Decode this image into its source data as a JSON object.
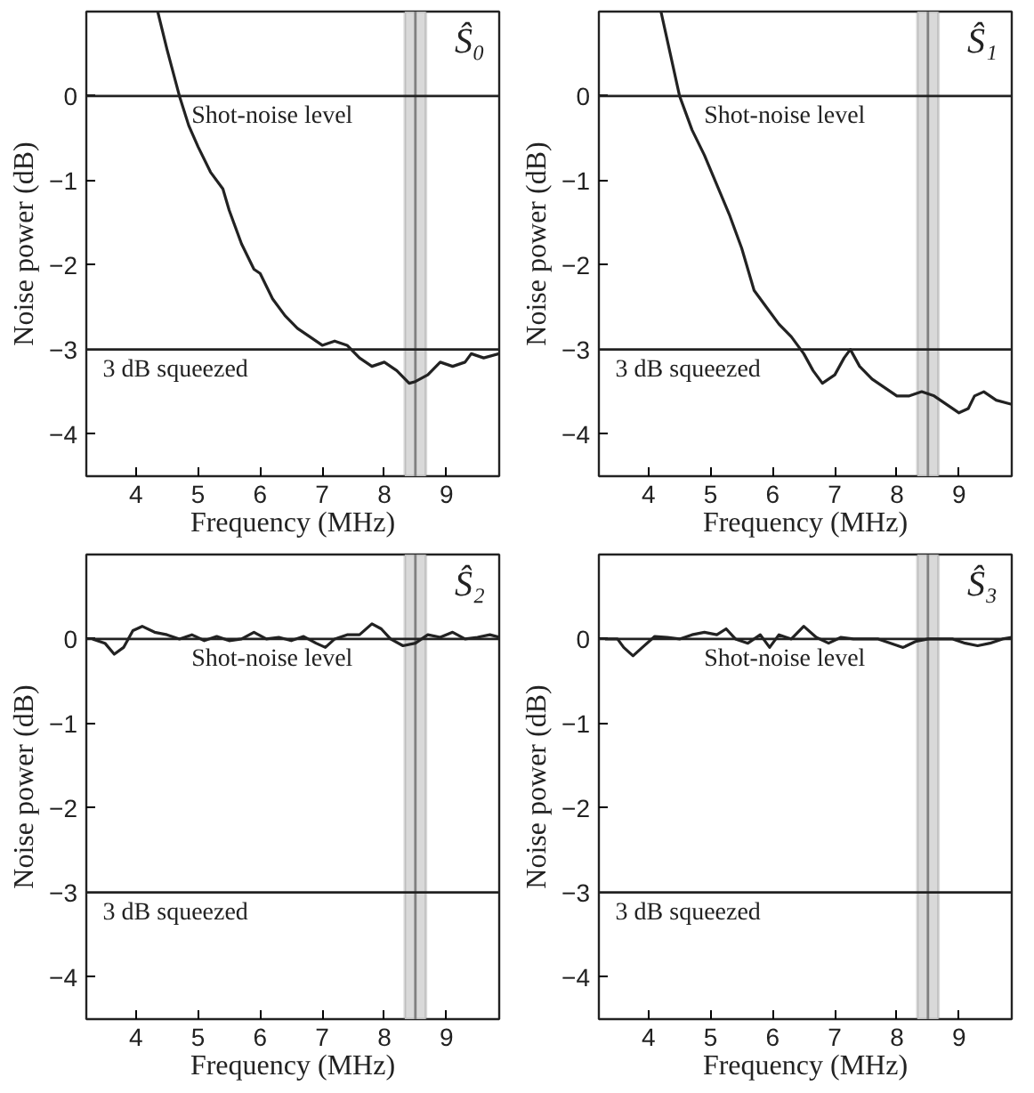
{
  "chart_data": [
    {
      "type": "line",
      "title": "Ŝ₀",
      "xlabel": "Frequency (MHz)",
      "ylabel": "Noise power (dB)",
      "xlim": [
        3.2,
        9.85
      ],
      "ylim": [
        -4.5,
        1.0
      ],
      "xticks": [
        4,
        5,
        6,
        7,
        8,
        9
      ],
      "yticks": [
        -4,
        -3,
        -2,
        -1,
        0
      ],
      "grid": false,
      "series": [
        {
          "color": "#222222",
          "x": [
            4.35,
            4.5,
            4.7,
            4.85,
            5.0,
            5.2,
            5.4,
            5.5,
            5.7,
            5.9,
            6.0,
            6.2,
            6.4,
            6.6,
            6.8,
            7.0,
            7.2,
            7.4,
            7.6,
            7.8,
            8.0,
            8.2,
            8.4,
            8.5,
            8.7,
            8.9,
            9.1,
            9.3,
            9.4,
            9.6,
            9.85
          ],
          "values": [
            1.0,
            0.55,
            0.0,
            -0.35,
            -0.6,
            -0.9,
            -1.1,
            -1.35,
            -1.75,
            -2.05,
            -2.1,
            -2.4,
            -2.6,
            -2.75,
            -2.85,
            -2.95,
            -2.9,
            -2.95,
            -3.1,
            -3.2,
            -3.15,
            -3.25,
            -3.4,
            -3.38,
            -3.3,
            -3.15,
            -3.2,
            -3.15,
            -3.05,
            -3.1,
            -3.05
          ]
        }
      ],
      "ref_lines": [
        {
          "axis": "y",
          "value": 0,
          "label": "Shot-noise level",
          "color": "#222222"
        },
        {
          "axis": "y",
          "value": -3,
          "label": "3 dB squeezed",
          "color": "#222222"
        },
        {
          "axis": "x",
          "value": 8.5,
          "color": "#808080"
        }
      ],
      "bands": [
        {
          "axis": "x",
          "from": 8.33,
          "to": 8.67,
          "color": "#d9d9d9"
        }
      ]
    },
    {
      "type": "line",
      "title": "Ŝ₁",
      "xlabel": "Frequency (MHz)",
      "ylabel": "Noise power (dB)",
      "xlim": [
        3.2,
        9.85
      ],
      "ylim": [
        -4.5,
        1.0
      ],
      "xticks": [
        4,
        5,
        6,
        7,
        8,
        9
      ],
      "yticks": [
        -4,
        -3,
        -2,
        -1,
        0
      ],
      "grid": false,
      "series": [
        {
          "color": "#222222",
          "x": [
            4.2,
            4.35,
            4.5,
            4.7,
            4.9,
            5.1,
            5.3,
            5.5,
            5.7,
            5.9,
            6.1,
            6.3,
            6.5,
            6.65,
            6.8,
            7.0,
            7.15,
            7.25,
            7.4,
            7.6,
            7.8,
            8.0,
            8.2,
            8.4,
            8.6,
            8.8,
            9.0,
            9.15,
            9.25,
            9.4,
            9.6,
            9.85
          ],
          "values": [
            1.0,
            0.5,
            0.0,
            -0.4,
            -0.7,
            -1.05,
            -1.4,
            -1.8,
            -2.3,
            -2.5,
            -2.7,
            -2.85,
            -3.05,
            -3.25,
            -3.4,
            -3.3,
            -3.1,
            -3.0,
            -3.2,
            -3.35,
            -3.45,
            -3.55,
            -3.55,
            -3.5,
            -3.55,
            -3.65,
            -3.75,
            -3.7,
            -3.55,
            -3.5,
            -3.6,
            -3.65
          ]
        }
      ],
      "ref_lines": [
        {
          "axis": "y",
          "value": 0,
          "label": "Shot-noise level",
          "color": "#222222"
        },
        {
          "axis": "y",
          "value": -3,
          "label": "3 dB squeezed",
          "color": "#222222"
        },
        {
          "axis": "x",
          "value": 8.5,
          "color": "#808080"
        }
      ],
      "bands": [
        {
          "axis": "x",
          "from": 8.33,
          "to": 8.67,
          "color": "#d9d9d9"
        }
      ]
    },
    {
      "type": "line",
      "title": "Ŝ₂",
      "xlabel": "Frequency (MHz)",
      "ylabel": "Noise power (dB)",
      "xlim": [
        3.2,
        9.85
      ],
      "ylim": [
        -4.5,
        1.0
      ],
      "xticks": [
        4,
        5,
        6,
        7,
        8,
        9
      ],
      "yticks": [
        -4,
        -3,
        -2,
        -1,
        0
      ],
      "grid": false,
      "series": [
        {
          "color": "#222222",
          "x": [
            3.3,
            3.5,
            3.65,
            3.8,
            3.95,
            4.1,
            4.3,
            4.5,
            4.7,
            4.9,
            5.1,
            5.3,
            5.5,
            5.7,
            5.9,
            6.1,
            6.3,
            6.5,
            6.7,
            6.9,
            7.05,
            7.2,
            7.4,
            7.6,
            7.8,
            7.95,
            8.1,
            8.3,
            8.5,
            8.7,
            8.9,
            9.1,
            9.3,
            9.5,
            9.7,
            9.85
          ],
          "values": [
            0.0,
            -0.05,
            -0.18,
            -0.1,
            0.1,
            0.15,
            0.08,
            0.05,
            0.0,
            0.05,
            -0.02,
            0.03,
            -0.02,
            0.0,
            0.08,
            0.0,
            0.02,
            -0.02,
            0.03,
            -0.05,
            -0.1,
            0.0,
            0.05,
            0.05,
            0.18,
            0.12,
            0.0,
            -0.08,
            -0.05,
            0.05,
            0.02,
            0.08,
            0.0,
            0.02,
            0.05,
            0.02
          ]
        }
      ],
      "ref_lines": [
        {
          "axis": "y",
          "value": 0,
          "label": "Shot-noise level",
          "color": "#222222"
        },
        {
          "axis": "y",
          "value": -3,
          "label": "3 dB squeezed",
          "color": "#222222"
        },
        {
          "axis": "x",
          "value": 8.5,
          "color": "#808080"
        }
      ],
      "bands": [
        {
          "axis": "x",
          "from": 8.33,
          "to": 8.67,
          "color": "#d9d9d9"
        }
      ]
    },
    {
      "type": "line",
      "title": "Ŝ₃",
      "xlabel": "Frequency (MHz)",
      "ylabel": "Noise power (dB)",
      "xlim": [
        3.2,
        9.85
      ],
      "ylim": [
        -4.5,
        1.0
      ],
      "xticks": [
        4,
        5,
        6,
        7,
        8,
        9
      ],
      "yticks": [
        -4,
        -3,
        -2,
        -1,
        0
      ],
      "grid": false,
      "series": [
        {
          "color": "#222222",
          "x": [
            3.3,
            3.5,
            3.6,
            3.75,
            3.9,
            4.1,
            4.3,
            4.5,
            4.7,
            4.9,
            5.1,
            5.25,
            5.4,
            5.6,
            5.8,
            5.95,
            6.1,
            6.3,
            6.5,
            6.7,
            6.9,
            7.1,
            7.3,
            7.5,
            7.7,
            7.9,
            8.1,
            8.3,
            8.5,
            8.7,
            8.9,
            9.1,
            9.3,
            9.5,
            9.7,
            9.85
          ],
          "values": [
            0.0,
            0.0,
            -0.1,
            -0.2,
            -0.1,
            0.03,
            0.02,
            0.0,
            0.05,
            0.08,
            0.05,
            0.12,
            0.0,
            -0.05,
            0.05,
            -0.1,
            0.05,
            0.0,
            0.15,
            0.02,
            -0.05,
            0.02,
            0.0,
            0.0,
            0.0,
            -0.05,
            -0.1,
            -0.03,
            0.0,
            0.0,
            0.0,
            -0.05,
            -0.08,
            -0.05,
            0.0,
            0.02
          ]
        }
      ],
      "ref_lines": [
        {
          "axis": "y",
          "value": 0,
          "label": "Shot-noise level",
          "color": "#222222"
        },
        {
          "axis": "y",
          "value": -3,
          "label": "3 dB squeezed",
          "color": "#222222"
        },
        {
          "axis": "x",
          "value": 8.5,
          "color": "#808080"
        }
      ],
      "bands": [
        {
          "axis": "x",
          "from": 8.33,
          "to": 8.67,
          "color": "#d9d9d9"
        }
      ]
    }
  ]
}
